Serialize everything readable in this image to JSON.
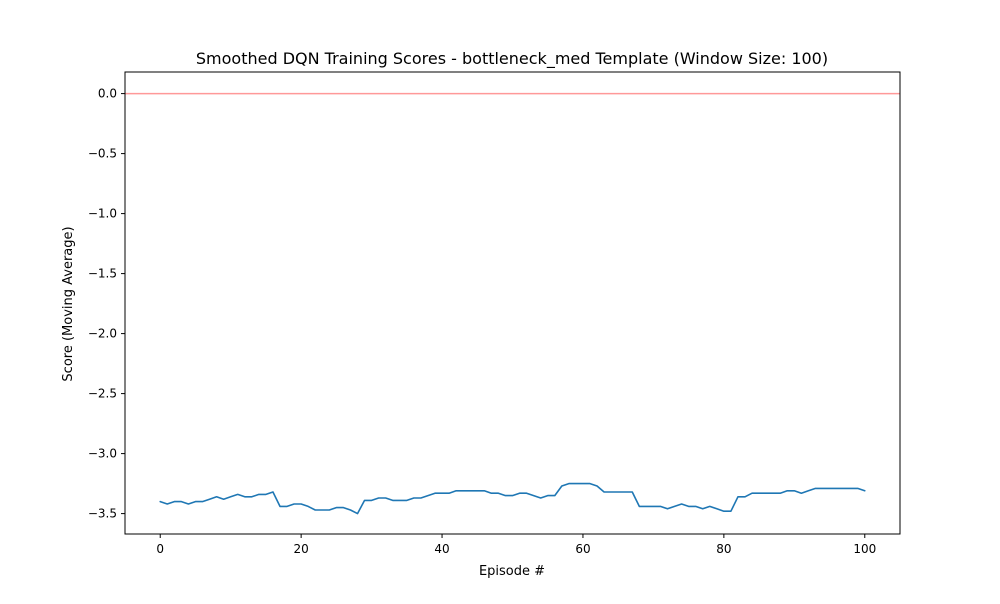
{
  "chart_data": {
    "type": "line",
    "title": "Smoothed DQN Training Scores - bottleneck_med Template (Window Size: 100)",
    "xlabel": "Episode #",
    "ylabel": "Score (Moving Average)",
    "xlim": [
      -5,
      105
    ],
    "ylim": [
      -3.67,
      0.18
    ],
    "xticks": [
      0,
      20,
      40,
      60,
      80,
      100
    ],
    "xtick_labels": [
      "0",
      "20",
      "40",
      "60",
      "80",
      "100"
    ],
    "yticks": [
      0.0,
      -0.5,
      -1.0,
      -1.5,
      -2.0,
      -2.5,
      -3.0,
      -3.5
    ],
    "ytick_labels": [
      "0.0",
      "−0.5",
      "−1.0",
      "−1.5",
      "−2.0",
      "−2.5",
      "−3.0",
      "−3.5"
    ],
    "grid": false,
    "legend": false,
    "reference_line": {
      "y": 0.0,
      "color": "#ff9999"
    },
    "series": [
      {
        "color": "#1f77b4",
        "x": [
          0,
          1,
          2,
          3,
          4,
          5,
          6,
          7,
          8,
          9,
          10,
          11,
          12,
          13,
          14,
          15,
          16,
          17,
          18,
          19,
          20,
          21,
          22,
          23,
          24,
          25,
          26,
          27,
          28,
          29,
          30,
          31,
          32,
          33,
          34,
          35,
          36,
          37,
          38,
          39,
          40,
          41,
          42,
          43,
          44,
          45,
          46,
          47,
          48,
          49,
          50,
          51,
          52,
          53,
          54,
          55,
          56,
          57,
          58,
          59,
          60,
          61,
          62,
          63,
          64,
          65,
          66,
          67,
          68,
          69,
          70,
          71,
          72,
          73,
          74,
          75,
          76,
          77,
          78,
          79,
          80,
          81,
          82,
          83,
          84,
          85,
          86,
          87,
          88,
          89,
          90,
          91,
          92,
          93,
          94,
          95,
          96,
          97,
          98,
          99,
          100
        ],
        "y": [
          -3.4,
          -3.42,
          -3.4,
          -3.4,
          -3.42,
          -3.4,
          -3.4,
          -3.38,
          -3.36,
          -3.38,
          -3.36,
          -3.34,
          -3.36,
          -3.36,
          -3.34,
          -3.34,
          -3.32,
          -3.44,
          -3.44,
          -3.42,
          -3.42,
          -3.44,
          -3.47,
          -3.47,
          -3.47,
          -3.45,
          -3.45,
          -3.47,
          -3.5,
          -3.39,
          -3.39,
          -3.37,
          -3.37,
          -3.39,
          -3.39,
          -3.39,
          -3.37,
          -3.37,
          -3.35,
          -3.33,
          -3.33,
          -3.33,
          -3.31,
          -3.31,
          -3.31,
          -3.31,
          -3.31,
          -3.33,
          -3.33,
          -3.35,
          -3.35,
          -3.33,
          -3.33,
          -3.35,
          -3.37,
          -3.35,
          -3.35,
          -3.27,
          -3.25,
          -3.25,
          -3.25,
          -3.25,
          -3.27,
          -3.32,
          -3.32,
          -3.32,
          -3.32,
          -3.32,
          -3.44,
          -3.44,
          -3.44,
          -3.44,
          -3.46,
          -3.44,
          -3.42,
          -3.44,
          -3.44,
          -3.46,
          -3.44,
          -3.46,
          -3.48,
          -3.48,
          -3.36,
          -3.36,
          -3.33,
          -3.33,
          -3.33,
          -3.33,
          -3.33,
          -3.31,
          -3.31,
          -3.33,
          -3.31,
          -3.29,
          -3.29,
          -3.29,
          -3.29,
          -3.29,
          -3.29,
          -3.29,
          -3.31
        ]
      }
    ]
  }
}
